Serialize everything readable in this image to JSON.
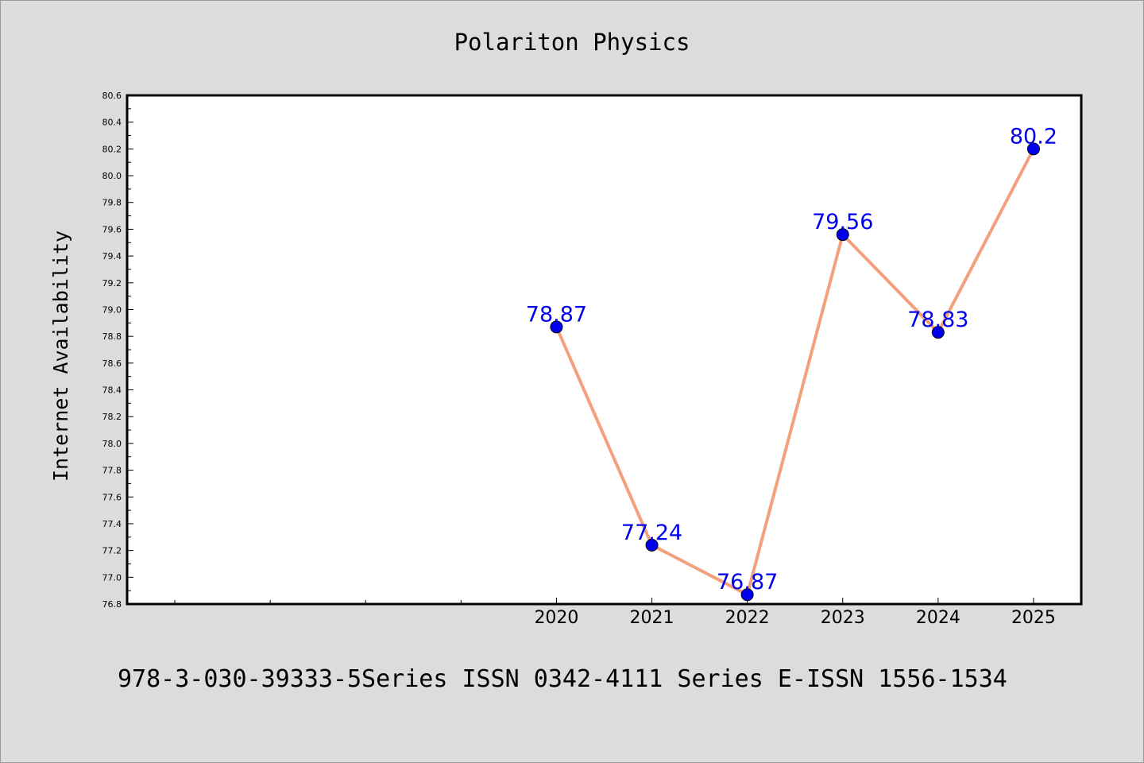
{
  "chart_data": {
    "type": "line",
    "title": "Polariton Physics",
    "ylabel": "Internet Availability",
    "xlabel": "",
    "x": [
      2020,
      2021,
      2022,
      2023,
      2024,
      2025
    ],
    "xlim": [
      2015.5,
      2025.5
    ],
    "xticks_major": [
      2020,
      2021,
      2022,
      2023,
      2024,
      2025
    ],
    "xticks_minor": [
      2016,
      2017,
      2018,
      2019
    ],
    "ylim": [
      76.8,
      80.6
    ],
    "yticks": [
      "76.8",
      "77.0",
      "77.2",
      "77.4",
      "77.6",
      "77.8",
      "78.0",
      "78.2",
      "78.4",
      "78.6",
      "78.8",
      "79.0",
      "79.2",
      "79.4",
      "79.6",
      "79.8",
      "80.0",
      "80.2",
      "80.4",
      "80.6"
    ],
    "series": [
      {
        "values": [
          78.87,
          77.24,
          76.87,
          79.56,
          78.83,
          80.2
        ],
        "labels": [
          "78.87",
          "77.24",
          "76.87",
          "79.56",
          "78.83",
          "80.2"
        ],
        "line_color": "#f4a07c",
        "marker_color": "#0000ee",
        "label_color": "#0000ee"
      }
    ],
    "grid": false,
    "legend": "none"
  },
  "footer_text": "978-3-030-39333-5Series ISSN 0342-4111 Series E-ISSN 1556-1534"
}
